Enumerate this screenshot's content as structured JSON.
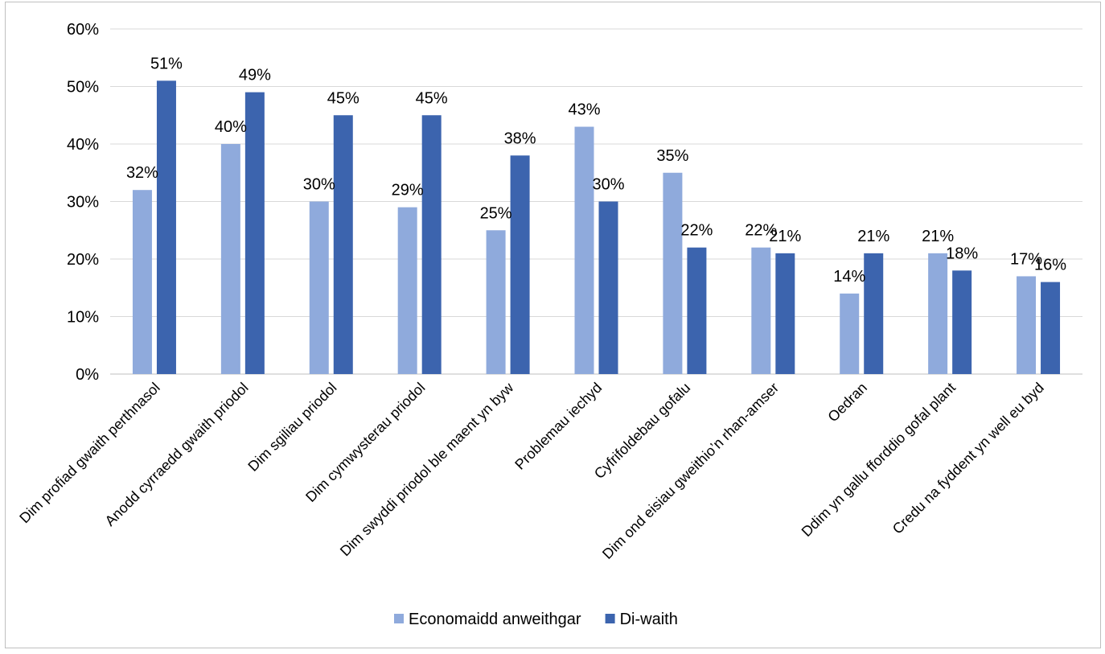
{
  "chart_data": {
    "type": "bar",
    "title": "",
    "xlabel": "",
    "ylabel": "",
    "ylim": [
      0,
      60
    ],
    "yticks": [
      "0%",
      "10%",
      "20%",
      "30%",
      "40%",
      "50%",
      "60%"
    ],
    "grid": true,
    "legend_position": "bottom",
    "categories": [
      "Dim profiad gwaith perthnasol",
      "Anodd cyrraedd gwaith priodol",
      "Dim sgiliau priodol",
      "Dim cymwysterau priodol",
      "Dim swyddi priodol ble maent yn byw",
      "Problemau iechyd",
      "Cyfrifoldebau gofalu",
      "Dim ond eisiau gweithio’n rhan-amser",
      "Oedran",
      "Ddim yn gallu fforddio gofal plant",
      "Credu na fyddent yn well eu byd"
    ],
    "series": [
      {
        "name": "Economaidd anweithgar",
        "color": "#8faadc",
        "values": [
          32,
          40,
          30,
          29,
          25,
          43,
          35,
          22,
          14,
          21,
          17
        ],
        "labels": [
          "32%",
          "40%",
          "30%",
          "29%",
          "25%",
          "43%",
          "35%",
          "22%",
          "14%",
          "21%",
          "17%"
        ]
      },
      {
        "name": "Di-waith",
        "color": "#3c64ae",
        "values": [
          51,
          49,
          45,
          45,
          38,
          30,
          22,
          21,
          21,
          18,
          16
        ],
        "labels": [
          "51%",
          "49%",
          "45%",
          "45%",
          "38%",
          "30%",
          "22%",
          "21%",
          "21%",
          "18%",
          "16%"
        ]
      }
    ]
  }
}
